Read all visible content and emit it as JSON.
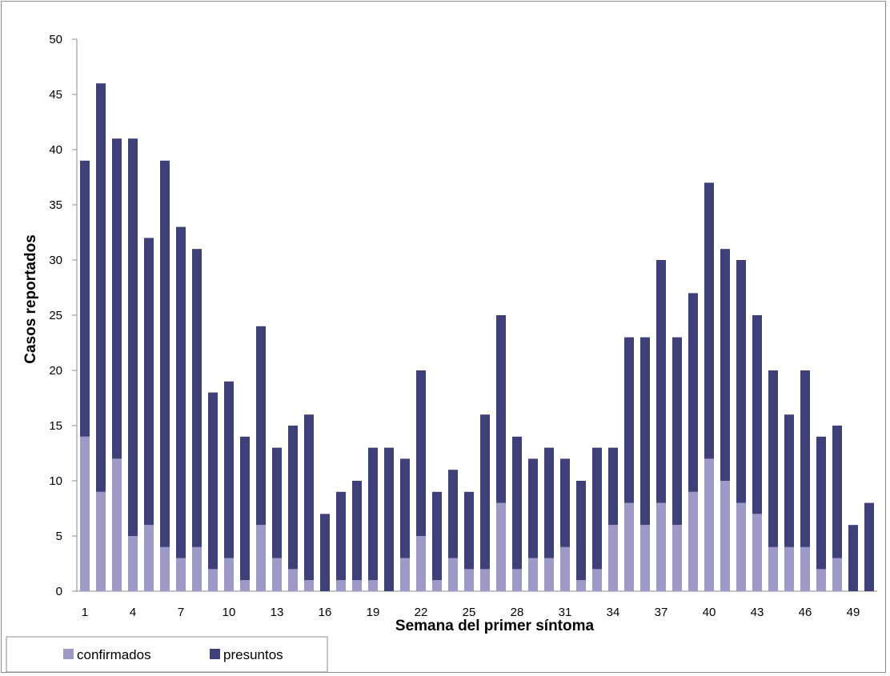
{
  "chart_data": {
    "type": "bar",
    "stacked": true,
    "title": "",
    "xlabel": "Semana del primer síntoma",
    "ylabel": "Casos reportados",
    "ylim": [
      0,
      50
    ],
    "yticks": [
      0,
      5,
      10,
      15,
      20,
      25,
      30,
      35,
      40,
      45,
      50
    ],
    "categories": [
      "1",
      "2",
      "3",
      "4",
      "5",
      "6",
      "7",
      "8",
      "9",
      "10",
      "11",
      "12",
      "13",
      "14",
      "15",
      "16",
      "17",
      "18",
      "19",
      "20",
      "21",
      "22",
      "23",
      "24",
      "25",
      "26",
      "27",
      "28",
      "29",
      "30",
      "31",
      "32",
      "33",
      "34",
      "35",
      "36",
      "37",
      "38",
      "39",
      "40",
      "41",
      "42",
      "43",
      "44",
      "45",
      "46",
      "47",
      "48",
      "49",
      "50"
    ],
    "xtick_labels_shown": [
      "1",
      "4",
      "7",
      "10",
      "13",
      "16",
      "19",
      "22",
      "25",
      "28",
      "31",
      "34",
      "37",
      "40",
      "43",
      "46",
      "49"
    ],
    "series": [
      {
        "name": "confirmados",
        "color": "#9e9ac8",
        "values": [
          14,
          9,
          12,
          5,
          6,
          4,
          3,
          4,
          2,
          3,
          1,
          6,
          3,
          2,
          1,
          0,
          1,
          1,
          1,
          0,
          3,
          5,
          1,
          3,
          2,
          2,
          8,
          2,
          3,
          3,
          4,
          1,
          2,
          6,
          8,
          6,
          8,
          6,
          9,
          12,
          10,
          8,
          7,
          4,
          4,
          4,
          2,
          3,
          0,
          0
        ]
      },
      {
        "name": "presuntos",
        "color": "#3f3f7a",
        "values": [
          25,
          37,
          29,
          36,
          26,
          35,
          30,
          27,
          16,
          16,
          13,
          18,
          10,
          13,
          15,
          7,
          8,
          9,
          12,
          13,
          9,
          15,
          8,
          8,
          7,
          14,
          17,
          12,
          9,
          10,
          8,
          9,
          11,
          7,
          15,
          17,
          22,
          17,
          18,
          25,
          21,
          22,
          18,
          16,
          12,
          16,
          12,
          12,
          6,
          8
        ]
      }
    ],
    "totals": [
      39,
      46,
      41,
      41,
      32,
      39,
      33,
      31,
      18,
      19,
      14,
      24,
      13,
      15,
      16,
      7,
      9,
      10,
      13,
      13,
      12,
      20,
      9,
      11,
      9,
      16,
      25,
      14,
      12,
      13,
      12,
      10,
      13,
      13,
      23,
      23,
      30,
      23,
      27,
      37,
      31,
      30,
      25,
      20,
      16,
      20,
      14,
      15,
      6,
      8
    ],
    "grid": false,
    "legend_position": "bottom-left"
  }
}
